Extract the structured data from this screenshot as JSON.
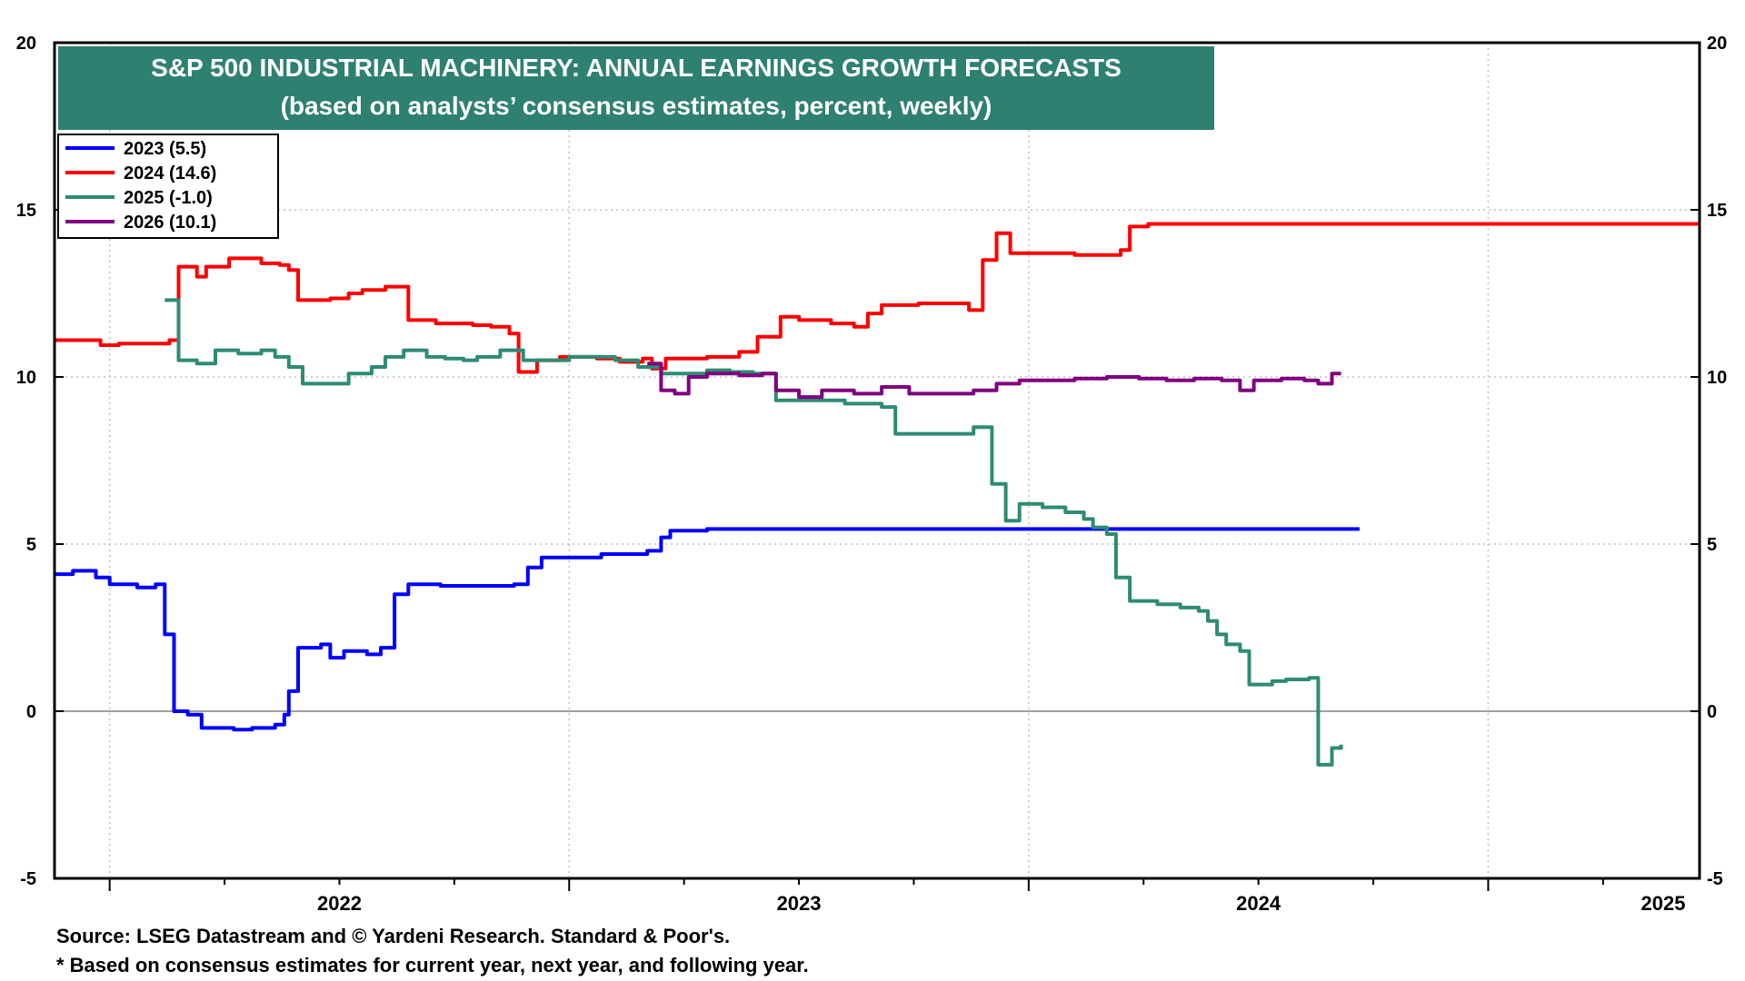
{
  "chart_data": {
    "type": "line",
    "title": "S&P 500 INDUSTRIAL MACHINERY: ANNUAL EARNINGS GROWTH FORECASTS",
    "subtitle": "(based on analysts’ consensus estimates, percent, weekly)",
    "xlabel": "",
    "ylabel": "",
    "ylim": [
      -5,
      20
    ],
    "yticks": [
      "20",
      "15",
      "10",
      "5",
      "0",
      "-5"
    ],
    "xticks": [
      "2022",
      "2023",
      "2024",
      "2025"
    ],
    "xlim": [
      2021.88,
      2025.46
    ],
    "grid": true,
    "legend_position": "top-left",
    "series": [
      {
        "name": "2023 (5.5)",
        "color": "#0000ff",
        "points": [
          [
            2021.88,
            4.1
          ],
          [
            2021.92,
            4.2
          ],
          [
            2021.97,
            4.0
          ],
          [
            2022.0,
            3.8
          ],
          [
            2022.06,
            3.7
          ],
          [
            2022.1,
            3.8
          ],
          [
            2022.12,
            2.3
          ],
          [
            2022.14,
            0.0
          ],
          [
            2022.17,
            -0.1
          ],
          [
            2022.2,
            -0.5
          ],
          [
            2022.27,
            -0.55
          ],
          [
            2022.31,
            -0.5
          ],
          [
            2022.36,
            -0.4
          ],
          [
            2022.38,
            -0.1
          ],
          [
            2022.39,
            0.6
          ],
          [
            2022.41,
            1.9
          ],
          [
            2022.46,
            2.0
          ],
          [
            2022.48,
            1.6
          ],
          [
            2022.51,
            1.8
          ],
          [
            2022.56,
            1.7
          ],
          [
            2022.59,
            1.9
          ],
          [
            2022.62,
            3.5
          ],
          [
            2022.65,
            3.8
          ],
          [
            2022.72,
            3.75
          ],
          [
            2022.8,
            3.75
          ],
          [
            2022.88,
            3.8
          ],
          [
            2022.91,
            4.3
          ],
          [
            2022.94,
            4.6
          ],
          [
            2023.0,
            4.6
          ],
          [
            2023.07,
            4.7
          ],
          [
            2023.1,
            4.7
          ],
          [
            2023.17,
            4.8
          ],
          [
            2023.2,
            5.2
          ],
          [
            2023.22,
            5.4
          ],
          [
            2023.3,
            5.45
          ],
          [
            2024.5,
            5.45
          ],
          [
            2024.72,
            5.45
          ]
        ]
      },
      {
        "name": "2024 (14.6)",
        "color": "#ff0000",
        "points": [
          [
            2021.88,
            11.1
          ],
          [
            2021.94,
            11.1
          ],
          [
            2021.98,
            10.95
          ],
          [
            2022.02,
            11.0
          ],
          [
            2022.08,
            11.0
          ],
          [
            2022.13,
            11.1
          ],
          [
            2022.15,
            13.3
          ],
          [
            2022.19,
            13.0
          ],
          [
            2022.21,
            13.3
          ],
          [
            2022.26,
            13.55
          ],
          [
            2022.33,
            13.4
          ],
          [
            2022.37,
            13.35
          ],
          [
            2022.39,
            13.2
          ],
          [
            2022.41,
            12.3
          ],
          [
            2022.48,
            12.35
          ],
          [
            2022.52,
            12.5
          ],
          [
            2022.55,
            12.6
          ],
          [
            2022.6,
            12.7
          ],
          [
            2022.65,
            11.7
          ],
          [
            2022.71,
            11.6
          ],
          [
            2022.79,
            11.55
          ],
          [
            2022.83,
            11.5
          ],
          [
            2022.87,
            11.3
          ],
          [
            2022.89,
            10.15
          ],
          [
            2022.93,
            10.5
          ],
          [
            2022.98,
            10.6
          ],
          [
            2023.06,
            10.55
          ],
          [
            2023.11,
            10.45
          ],
          [
            2023.16,
            10.55
          ],
          [
            2023.18,
            10.25
          ],
          [
            2023.21,
            10.55
          ],
          [
            2023.3,
            10.6
          ],
          [
            2023.37,
            10.75
          ],
          [
            2023.41,
            11.2
          ],
          [
            2023.46,
            11.8
          ],
          [
            2023.5,
            11.7
          ],
          [
            2023.57,
            11.6
          ],
          [
            2023.62,
            11.5
          ],
          [
            2023.65,
            11.9
          ],
          [
            2023.68,
            12.15
          ],
          [
            2023.76,
            12.2
          ],
          [
            2023.82,
            12.2
          ],
          [
            2023.87,
            12.0
          ],
          [
            2023.9,
            13.5
          ],
          [
            2023.93,
            14.3
          ],
          [
            2023.96,
            13.7
          ],
          [
            2024.02,
            13.7
          ],
          [
            2024.06,
            13.7
          ],
          [
            2024.1,
            13.65
          ],
          [
            2024.17,
            13.65
          ],
          [
            2024.2,
            13.8
          ],
          [
            2024.22,
            14.5
          ],
          [
            2024.26,
            14.58
          ],
          [
            2025.46,
            14.58
          ]
        ]
      },
      {
        "name": "2025 (-1.0)",
        "color": "#2e8b74",
        "points": [
          [
            2022.12,
            12.3
          ],
          [
            2022.14,
            12.3
          ],
          [
            2022.15,
            10.5
          ],
          [
            2022.19,
            10.4
          ],
          [
            2022.23,
            10.8
          ],
          [
            2022.28,
            10.7
          ],
          [
            2022.33,
            10.8
          ],
          [
            2022.36,
            10.6
          ],
          [
            2022.39,
            10.3
          ],
          [
            2022.42,
            9.8
          ],
          [
            2022.47,
            9.8
          ],
          [
            2022.52,
            10.1
          ],
          [
            2022.57,
            10.3
          ],
          [
            2022.6,
            10.6
          ],
          [
            2022.64,
            10.8
          ],
          [
            2022.69,
            10.6
          ],
          [
            2022.73,
            10.55
          ],
          [
            2022.77,
            10.5
          ],
          [
            2022.8,
            10.6
          ],
          [
            2022.85,
            10.8
          ],
          [
            2022.9,
            10.5
          ],
          [
            2023.0,
            10.6
          ],
          [
            2023.1,
            10.5
          ],
          [
            2023.15,
            10.3
          ],
          [
            2023.2,
            10.1
          ],
          [
            2023.25,
            10.1
          ],
          [
            2023.3,
            10.2
          ],
          [
            2023.35,
            10.15
          ],
          [
            2023.4,
            10.1
          ],
          [
            2023.45,
            9.3
          ],
          [
            2023.5,
            9.3
          ],
          [
            2023.6,
            9.2
          ],
          [
            2023.68,
            9.1
          ],
          [
            2023.71,
            8.3
          ],
          [
            2023.77,
            8.3
          ],
          [
            2023.85,
            8.3
          ],
          [
            2023.88,
            8.5
          ],
          [
            2023.9,
            8.5
          ],
          [
            2023.92,
            6.8
          ],
          [
            2023.95,
            5.7
          ],
          [
            2023.98,
            6.2
          ],
          [
            2024.03,
            6.1
          ],
          [
            2024.08,
            5.95
          ],
          [
            2024.12,
            5.75
          ],
          [
            2024.14,
            5.5
          ],
          [
            2024.17,
            5.3
          ],
          [
            2024.19,
            4.0
          ],
          [
            2024.22,
            3.3
          ],
          [
            2024.28,
            3.2
          ],
          [
            2024.33,
            3.1
          ],
          [
            2024.37,
            3.0
          ],
          [
            2024.39,
            2.7
          ],
          [
            2024.41,
            2.3
          ],
          [
            2024.43,
            2.0
          ],
          [
            2024.46,
            1.8
          ],
          [
            2024.48,
            0.8
          ],
          [
            2024.53,
            0.9
          ],
          [
            2024.56,
            0.95
          ],
          [
            2024.61,
            1.0
          ],
          [
            2024.63,
            -1.6
          ],
          [
            2024.66,
            -1.1
          ],
          [
            2024.68,
            -1.0
          ]
        ]
      },
      {
        "name": "2026 (10.1)",
        "color": "#800080",
        "points": [
          [
            2023.17,
            10.4
          ],
          [
            2023.2,
            9.6
          ],
          [
            2023.23,
            9.5
          ],
          [
            2023.26,
            10.0
          ],
          [
            2023.3,
            10.1
          ],
          [
            2023.37,
            10.05
          ],
          [
            2023.42,
            10.1
          ],
          [
            2023.45,
            9.6
          ],
          [
            2023.5,
            9.4
          ],
          [
            2023.55,
            9.6
          ],
          [
            2023.62,
            9.5
          ],
          [
            2023.68,
            9.7
          ],
          [
            2023.74,
            9.5
          ],
          [
            2023.8,
            9.5
          ],
          [
            2023.88,
            9.6
          ],
          [
            2023.93,
            9.8
          ],
          [
            2023.98,
            9.9
          ],
          [
            2024.04,
            9.9
          ],
          [
            2024.1,
            9.95
          ],
          [
            2024.17,
            10.0
          ],
          [
            2024.24,
            9.95
          ],
          [
            2024.3,
            9.9
          ],
          [
            2024.36,
            9.95
          ],
          [
            2024.42,
            9.9
          ],
          [
            2024.46,
            9.6
          ],
          [
            2024.49,
            9.9
          ],
          [
            2024.55,
            9.95
          ],
          [
            2024.6,
            9.9
          ],
          [
            2024.63,
            9.8
          ],
          [
            2024.66,
            10.1
          ],
          [
            2024.68,
            10.1
          ]
        ]
      }
    ]
  },
  "footer": {
    "source": "Source: LSEG Datastream and © Yardeni Research. Standard & Poor's.",
    "note": "* Based on consensus estimates for current year, next year, and following year."
  },
  "colors": {
    "title_bg": "#2e8070",
    "title_text": "#ffffff",
    "zero_line": "#808080",
    "grid": "#c0c0c0"
  }
}
